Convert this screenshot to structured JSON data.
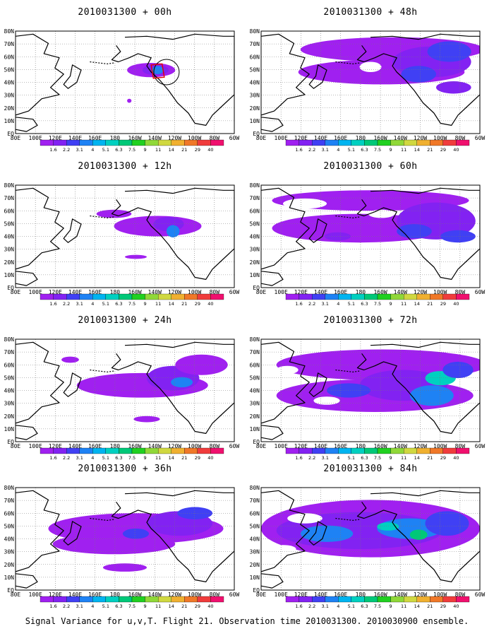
{
  "panels": [
    {
      "title": "2010031300 + 00h"
    },
    {
      "title": "2010031300 + 48h"
    },
    {
      "title": "2010031300 + 12h"
    },
    {
      "title": "2010031300 + 60h"
    },
    {
      "title": "2010031300 + 24h"
    },
    {
      "title": "2010031300 + 72h"
    },
    {
      "title": "2010031300 + 36h"
    },
    {
      "title": "2010031300 + 84h"
    }
  ],
  "map": {
    "lon_labels": [
      "80E",
      "100E",
      "120E",
      "140E",
      "160E",
      "180",
      "160W",
      "140W",
      "120W",
      "100W",
      "80W",
      "60W"
    ],
    "lat_labels": [
      "80N",
      "70N",
      "60N",
      "50N",
      "40N",
      "30N",
      "20N",
      "10N",
      "EQ"
    ]
  },
  "colorbar": {
    "labels": [
      "1.6",
      "2.2",
      "3.1",
      "4",
      "5.1",
      "6.3",
      "7.5",
      "9",
      "11",
      "14",
      "21",
      "29",
      "40"
    ],
    "colors": [
      "#a020f0",
      "#8222f2",
      "#4040f4",
      "#1e82f4",
      "#00b4f0",
      "#00d0c0",
      "#00c878",
      "#20d020",
      "#90d838",
      "#d0d840",
      "#f0b030",
      "#f07828",
      "#f03c3c",
      "#f0106e"
    ]
  },
  "footer": "Signal Variance for u,v,T. Flight 21. Observation time 2010031300. 2010030900 ensemble."
}
